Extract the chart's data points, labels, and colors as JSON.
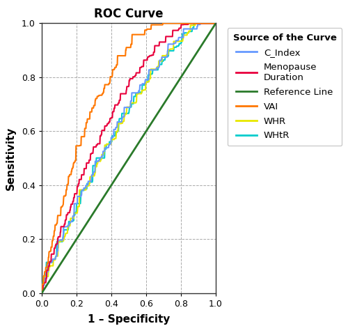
{
  "title": "ROC Curve",
  "xlabel": "1 – Specificity",
  "ylabel": "Sensitivity",
  "legend_title": "Source of the Curve",
  "curves": {
    "C_Index": {
      "label": "C_Index",
      "color": "#6699ff",
      "auc": 0.612,
      "seed": 10,
      "noise": 0.022
    },
    "Menopause": {
      "label": "Menopause\nDuration",
      "color": "#e8003d",
      "auc": 0.667,
      "seed": 20,
      "noise": 0.018
    },
    "VAI": {
      "label": "VAI",
      "color": "#ff7700",
      "auc": 0.755,
      "seed": 30,
      "noise": 0.018
    },
    "WHR": {
      "label": "WHR",
      "color": "#e8e800",
      "auc": 0.606,
      "seed": 40,
      "noise": 0.02
    },
    "WHtR": {
      "label": "WHtR",
      "color": "#00cccc",
      "auc": 0.607,
      "seed": 50,
      "noise": 0.022
    }
  },
  "ref_color": "#2a7a2a",
  "background": "#ffffff",
  "grid_color": "#aaaaaa",
  "xlim": [
    0.0,
    1.0
  ],
  "ylim": [
    0.0,
    1.0
  ],
  "figsize": [
    5.0,
    4.78
  ],
  "dpi": 100
}
